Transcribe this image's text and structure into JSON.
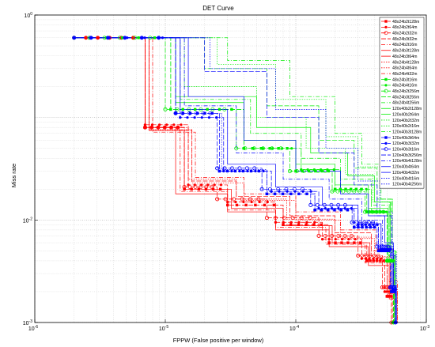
{
  "chart_data": {
    "type": "line",
    "title": "DET Curve",
    "xlabel": "FPPW (False positive per window)",
    "ylabel": "Miss rate",
    "xscale": "log",
    "yscale": "log",
    "xlim": [
      1e-06,
      0.001
    ],
    "ylim": [
      0.001,
      1
    ],
    "grid": true,
    "legend_position": "top-right",
    "x_ticks": [
      {
        "value": 1e-06,
        "base": "10",
        "exp": "-6"
      },
      {
        "value": 1e-05,
        "base": "10",
        "exp": "-5"
      },
      {
        "value": 0.0001,
        "base": "10",
        "exp": "-4"
      },
      {
        "value": 0.001,
        "base": "10",
        "exp": "-3"
      }
    ],
    "y_ticks": [
      {
        "value": 0.001,
        "base": "10",
        "exp": "-3"
      },
      {
        "value": 0.01,
        "base": "10",
        "exp": "-2"
      },
      {
        "value": 1,
        "base": "10",
        "exp": "0"
      }
    ],
    "series": [
      {
        "name": "48x24b2t128m",
        "color": "#ff0000",
        "dash": "6,2",
        "marker": "square",
        "x": [
          2e-06,
          7e-06,
          1.4e-05,
          3e-05,
          8e-05,
          0.00018,
          0.00035,
          0.0005,
          0.00055
        ],
        "y": [
          0.6,
          0.08,
          0.02,
          0.014,
          0.009,
          0.006,
          0.004,
          0.0018,
          0.001
        ]
      },
      {
        "name": "48x24b2t64m",
        "color": "#ff0000",
        "dash": "6,2",
        "marker": "dot",
        "x": [
          2e-06,
          7e-06,
          1.5e-05,
          3e-05,
          7e-05,
          0.00016,
          0.00032,
          0.00048,
          0.00056
        ],
        "y": [
          0.6,
          0.085,
          0.022,
          0.015,
          0.0095,
          0.0065,
          0.0042,
          0.002,
          0.001
        ]
      },
      {
        "name": "48x24b2t32m",
        "color": "#ff0000",
        "dash": "6,2",
        "marker": "circle",
        "x": [
          2e-06,
          7e-06,
          1.4e-05,
          2.5e-05,
          6e-05,
          0.00015,
          0.0003,
          0.00046,
          0.00054
        ],
        "y": [
          0.6,
          0.08,
          0.021,
          0.016,
          0.0105,
          0.007,
          0.0045,
          0.0022,
          0.001
        ]
      },
      {
        "name": "48x24b3t32m",
        "color": "#ff0000",
        "dash": "6,2",
        "marker": "none",
        "x": [
          2e-06,
          7.5e-06,
          1.6e-05,
          3.5e-05,
          9e-05,
          0.0002,
          0.00038,
          0.00052,
          0.00057
        ],
        "y": [
          0.6,
          0.075,
          0.024,
          0.017,
          0.011,
          0.0075,
          0.005,
          0.0025,
          0.001
        ]
      },
      {
        "name": "48x24b2t16m",
        "color": "#ff0000",
        "dash": "5,2,1,2",
        "marker": "none",
        "x": [
          2e-06,
          7e-06,
          1.3e-05,
          3e-05,
          7e-05,
          0.00017,
          0.00034,
          0.0005,
          0.00058
        ],
        "y": [
          0.6,
          0.08,
          0.019,
          0.0125,
          0.0085,
          0.0058,
          0.0038,
          0.0019,
          0.001
        ]
      },
      {
        "name": "48x24b3t128m",
        "color": "#ff0000",
        "dash": "",
        "marker": "none",
        "x": [
          2e-06,
          7e-06,
          1.2e-05,
          3e-05,
          7e-05,
          0.00018,
          0.00036,
          0.00052,
          0.00058
        ],
        "y": [
          0.6,
          0.08,
          0.018,
          0.012,
          0.008,
          0.0055,
          0.0036,
          0.0017,
          0.001
        ]
      },
      {
        "name": "48x24b3t64m",
        "color": "#ff0000",
        "dash": "",
        "marker": "none",
        "x": [
          2e-06,
          7.5e-06,
          1.4e-05,
          3.2e-05,
          8e-05,
          0.00019,
          0.00037,
          0.00053,
          0.00059
        ],
        "y": [
          0.6,
          0.075,
          0.02,
          0.013,
          0.0088,
          0.006,
          0.004,
          0.0019,
          0.001
        ]
      },
      {
        "name": "48x24b4t128m",
        "color": "#ff0000",
        "dash": "1.5,1.5",
        "marker": "none",
        "x": [
          2e-06,
          7e-06,
          1.5e-05,
          3.5e-05,
          8.5e-05,
          0.0002,
          0.00038,
          0.00054,
          0.00059
        ],
        "y": [
          0.6,
          0.08,
          0.025,
          0.016,
          0.0102,
          0.0068,
          0.0044,
          0.002,
          0.001
        ]
      },
      {
        "name": "48x24b4t64m",
        "color": "#ff0000",
        "dash": "1.5,1.5",
        "marker": "none",
        "x": [
          2e-06,
          7.5e-06,
          1.6e-05,
          4e-05,
          0.0001,
          0.00022,
          0.0004,
          0.00055,
          0.0006
        ],
        "y": [
          0.6,
          0.076,
          0.023,
          0.0155,
          0.01,
          0.0066,
          0.0043,
          0.0021,
          0.001
        ]
      },
      {
        "name": "48x24b4t32m",
        "color": "#ff0000",
        "dash": "5,2,1,2",
        "marker": "none",
        "x": [
          2e-06,
          8e-06,
          1.7e-05,
          4e-05,
          0.0001,
          0.00022,
          0.00041,
          0.00056,
          0.0006
        ],
        "y": [
          0.6,
          0.072,
          0.026,
          0.018,
          0.012,
          0.008,
          0.0052,
          0.0026,
          0.001
        ]
      },
      {
        "name": "48x24b3t16m",
        "color": "#00ee00",
        "dash": "6,2",
        "marker": "square",
        "x": [
          2e-06,
          1.1e-05,
          4e-05,
          0.0001,
          0.0002,
          0.00035,
          0.0005,
          0.00056
        ],
        "y": [
          0.6,
          0.12,
          0.05,
          0.03,
          0.02,
          0.012,
          0.004,
          0.001
        ]
      },
      {
        "name": "48x24b4t16m",
        "color": "#00ee00",
        "dash": "6,2",
        "marker": "dot",
        "x": [
          2e-06,
          1.1e-05,
          4e-05,
          0.00011,
          0.00022,
          0.00038,
          0.00052,
          0.00057
        ],
        "y": [
          0.6,
          0.12,
          0.05,
          0.031,
          0.02,
          0.012,
          0.004,
          0.001
        ]
      },
      {
        "name": "48x24b2t256m",
        "color": "#00ee00",
        "dash": "6,2",
        "marker": "circle",
        "x": [
          2e-06,
          1e-05,
          3.5e-05,
          9e-05,
          0.00019,
          0.00034,
          0.0005,
          0.00056
        ],
        "y": [
          0.6,
          0.12,
          0.05,
          0.03,
          0.019,
          0.012,
          0.004,
          0.001
        ]
      },
      {
        "name": "48x24b3t256m",
        "color": "#00ee00",
        "dash": "6,2",
        "marker": "none",
        "x": [
          2e-06,
          2e-05,
          6e-05,
          0.00015,
          0.00028,
          0.00042,
          0.00054,
          0.00058
        ],
        "y": [
          0.6,
          0.3,
          0.13,
          0.06,
          0.032,
          0.016,
          0.005,
          0.001
        ]
      },
      {
        "name": "48x24b4t256m",
        "color": "#00ee00",
        "dash": "5,2,1,2",
        "marker": "none",
        "x": [
          2e-06,
          3e-05,
          9e-05,
          0.0002,
          0.00032,
          0.00045,
          0.00055,
          0.00058
        ],
        "y": [
          0.6,
          0.36,
          0.16,
          0.07,
          0.035,
          0.016,
          0.005,
          0.001
        ]
      },
      {
        "name": "120x40b2t128m",
        "color": "#00ee00",
        "dash": "",
        "marker": "none",
        "x": [
          2e-06,
          1.2e-05,
          4e-05,
          0.0001,
          0.0002,
          0.00036,
          0.00051,
          0.00057
        ],
        "y": [
          0.6,
          0.14,
          0.06,
          0.035,
          0.022,
          0.013,
          0.0045,
          0.001
        ]
      },
      {
        "name": "120x40b2t64m",
        "color": "#00ee00",
        "dash": "",
        "marker": "none",
        "x": [
          2e-06,
          1.2e-05,
          5e-05,
          0.00013,
          0.00025,
          0.0004,
          0.00053,
          0.00058
        ],
        "y": [
          0.6,
          0.16,
          0.08,
          0.045,
          0.027,
          0.015,
          0.005,
          0.001
        ]
      },
      {
        "name": "120x40b2t32m",
        "color": "#00ee00",
        "dash": "1.5,1.5",
        "marker": "none",
        "x": [
          2e-06,
          2.5e-05,
          7e-05,
          0.00017,
          0.0003,
          0.00044,
          0.00055,
          0.00059
        ],
        "y": [
          0.6,
          0.33,
          0.15,
          0.065,
          0.033,
          0.016,
          0.005,
          0.001
        ]
      },
      {
        "name": "120x40b2t16m",
        "color": "#00ee00",
        "dash": "1.5,1.5",
        "marker": "none",
        "x": [
          2e-06,
          1.4e-05,
          5e-05,
          0.00012,
          0.00024,
          0.00039,
          0.00052,
          0.00058
        ],
        "y": [
          0.6,
          0.2,
          0.1,
          0.05,
          0.028,
          0.015,
          0.005,
          0.001
        ]
      },
      {
        "name": "120x40b3t128m",
        "color": "#00ee00",
        "dash": "5,2,1,2",
        "marker": "none",
        "x": [
          2e-06,
          1.3e-05,
          4.5e-05,
          0.00011,
          0.00022,
          0.00038,
          0.00052,
          0.00057
        ],
        "y": [
          0.6,
          0.15,
          0.07,
          0.04,
          0.025,
          0.014,
          0.0048,
          0.001
        ]
      },
      {
        "name": "120x40b3t64m",
        "color": "#0000ff",
        "dash": "6,2",
        "marker": "square",
        "x": [
          2e-06,
          1.2e-05,
          2.6e-05,
          6e-05,
          0.00014,
          0.00028,
          0.00043,
          0.00054,
          0.00058
        ],
        "y": [
          0.6,
          0.11,
          0.03,
          0.018,
          0.0125,
          0.0085,
          0.005,
          0.002,
          0.001
        ]
      },
      {
        "name": "120x40b3t32m",
        "color": "#0000ff",
        "dash": "6,2",
        "marker": "dot",
        "x": [
          2e-06,
          1.3e-05,
          2.8e-05,
          6.5e-05,
          0.00015,
          0.0003,
          0.00045,
          0.00055,
          0.00059
        ],
        "y": [
          0.6,
          0.1,
          0.03,
          0.019,
          0.013,
          0.009,
          0.0052,
          0.0021,
          0.001
        ]
      },
      {
        "name": "120x40b3t16m",
        "color": "#0000ff",
        "dash": "6,2",
        "marker": "circle",
        "x": [
          2e-06,
          1.2e-05,
          2.5e-05,
          5.5e-05,
          0.00013,
          0.00027,
          0.00042,
          0.00053,
          0.00058
        ],
        "y": [
          0.6,
          0.11,
          0.032,
          0.02,
          0.014,
          0.0095,
          0.0055,
          0.0022,
          0.001
        ]
      },
      {
        "name": "120x40b3t256m",
        "color": "#0000ff",
        "dash": "6,2",
        "marker": "none",
        "x": [
          2e-06,
          2e-05,
          6e-05,
          0.00015,
          0.00028,
          0.00042,
          0.00054,
          0.00058
        ],
        "y": [
          0.6,
          0.28,
          0.1,
          0.045,
          0.022,
          0.011,
          0.0045,
          0.001
        ]
      },
      {
        "name": "120x40b4t128m",
        "color": "#0000ff",
        "dash": "5,2,1,2",
        "marker": "none",
        "x": [
          2e-06,
          1.4e-05,
          3.5e-05,
          8e-05,
          0.00018,
          0.00032,
          0.00046,
          0.00056,
          0.00059
        ],
        "y": [
          0.6,
          0.13,
          0.045,
          0.025,
          0.016,
          0.01,
          0.0056,
          0.0022,
          0.001
        ]
      },
      {
        "name": "120x40b4t64m",
        "color": "#0000ff",
        "dash": "",
        "marker": "none",
        "x": [
          2e-06,
          1.3e-05,
          3e-05,
          7e-05,
          0.00016,
          0.0003,
          0.00045,
          0.00055,
          0.00059
        ],
        "y": [
          0.6,
          0.12,
          0.035,
          0.021,
          0.014,
          0.0092,
          0.0052,
          0.0021,
          0.001
        ]
      },
      {
        "name": "120x40b4t32m",
        "color": "#0000ff",
        "dash": "",
        "marker": "none",
        "x": [
          2e-06,
          1.5e-05,
          4e-05,
          0.0001,
          0.00022,
          0.00036,
          0.00048,
          0.00056,
          0.00059
        ],
        "y": [
          0.6,
          0.16,
          0.06,
          0.03,
          0.018,
          0.011,
          0.006,
          0.0023,
          0.001
        ]
      },
      {
        "name": "120x40b4t16m",
        "color": "#0000ff",
        "dash": "1.5,1.5",
        "marker": "none",
        "x": [
          2e-06,
          1.2e-05,
          2.7e-05,
          6e-05,
          0.00014,
          0.00028,
          0.00043,
          0.00054,
          0.00058
        ],
        "y": [
          0.6,
          0.11,
          0.031,
          0.019,
          0.013,
          0.0088,
          0.005,
          0.002,
          0.001
        ]
      },
      {
        "name": "120x40b4t256m",
        "color": "#0000ff",
        "dash": "1.5,1.5",
        "marker": "none",
        "x": [
          2e-06,
          2.2e-05,
          7e-05,
          0.00017,
          0.0003,
          0.00044,
          0.00055,
          0.00059
        ],
        "y": [
          0.6,
          0.3,
          0.12,
          0.05,
          0.024,
          0.012,
          0.0046,
          0.001
        ]
      }
    ]
  }
}
